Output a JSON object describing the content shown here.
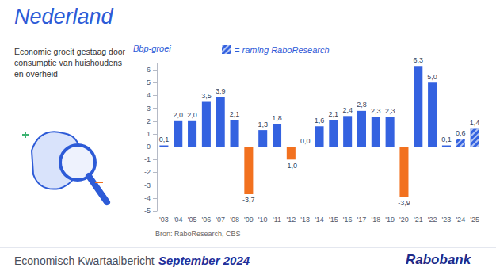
{
  "chart_data": {
    "type": "bar",
    "title": "Nederland",
    "subtitle": "Economie groeit gestaag door consumptie van huishoudens en overheid",
    "source": "Bron: RaboResearch, CBS",
    "categories": [
      "'03",
      "'04",
      "'05",
      "'06",
      "'07",
      "'08",
      "'09",
      "'10",
      "'11",
      "'12",
      "'13",
      "'14",
      "'15",
      "'16",
      "'17",
      "'18",
      "'19",
      "'20",
      "'21",
      "'22",
      "'23",
      "'24",
      "'25"
    ],
    "series": [
      {
        "name": "Bbp-groei",
        "values": [
          0.1,
          2.0,
          2.0,
          3.5,
          3.9,
          2.1,
          -3.7,
          1.3,
          1.8,
          -1.0,
          0.0,
          1.6,
          2.1,
          2.4,
          2.8,
          2.3,
          2.3,
          -3.9,
          6.3,
          5.0,
          0.1,
          null,
          null
        ],
        "value_labels": [
          "0,1",
          "2,0",
          "2,0",
          "3,5",
          "3,9",
          "2,1",
          "-3,7",
          "1,3",
          "1,8",
          "-1,0",
          "0,0",
          "1,6",
          "2,1",
          "2,4",
          "2,8",
          "2,3",
          "2,3",
          "-3,9",
          "6,3",
          "5,0",
          "0,1",
          null,
          null
        ],
        "colors": [
          "#3462e0",
          "#3462e0",
          "#3462e0",
          "#3462e0",
          "#3462e0",
          "#3462e0",
          "#f2711f",
          "#3462e0",
          "#3462e0",
          "#f2711f",
          "#3462e0",
          "#3462e0",
          "#3462e0",
          "#3462e0",
          "#3462e0",
          "#3462e0",
          "#3462e0",
          "#f2711f",
          "#3462e0",
          "#3462e0",
          "#3462e0",
          null,
          null
        ]
      },
      {
        "name": "= raming RaboResearch",
        "values": [
          null,
          null,
          null,
          null,
          null,
          null,
          null,
          null,
          null,
          null,
          null,
          null,
          null,
          null,
          null,
          null,
          null,
          null,
          null,
          null,
          null,
          0.6,
          1.4
        ],
        "value_labels": [
          null,
          null,
          null,
          null,
          null,
          null,
          null,
          null,
          null,
          null,
          null,
          null,
          null,
          null,
          null,
          null,
          null,
          null,
          null,
          null,
          null,
          "0,6",
          "1,4"
        ],
        "color": "#3462e0",
        "marker": "hatch"
      }
    ],
    "ylim": [
      -5,
      6.5
    ],
    "yticks": [
      -5,
      -4,
      -3,
      -2,
      -1,
      0,
      1,
      2,
      3,
      4,
      5,
      6
    ],
    "grid": false,
    "data_labels": true
  },
  "footer": {
    "report": "Economisch Kwartaalbericht",
    "date": "September 2024",
    "brand": "Rabobank"
  }
}
